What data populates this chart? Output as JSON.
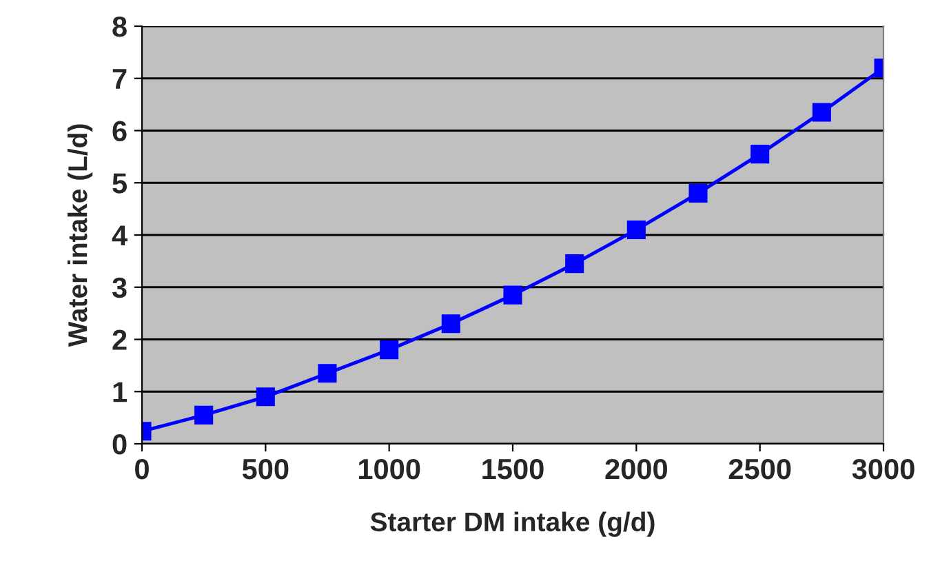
{
  "chart_data": {
    "type": "line",
    "xlabel": "Starter DM intake (g/d)",
    "ylabel": "Water intake (L/d)",
    "x": [
      0,
      250,
      500,
      750,
      1000,
      1250,
      1500,
      1750,
      2000,
      2250,
      2500,
      2750,
      3000
    ],
    "series": [
      {
        "color": "#0000ff",
        "values": [
          0.24,
          0.55,
          0.9,
          1.35,
          1.8,
          2.3,
          2.85,
          3.45,
          4.1,
          4.8,
          5.55,
          6.35,
          7.2
        ]
      }
    ],
    "xlim": [
      0,
      3000
    ],
    "xticks": [
      0,
      500,
      1000,
      1500,
      2000,
      2500,
      3000
    ],
    "ylim": [
      0,
      8
    ],
    "yticks": [
      0,
      1,
      2,
      3,
      4,
      5,
      6,
      7,
      8
    ],
    "grid": "y",
    "marker": "square",
    "line_style": "solid"
  }
}
